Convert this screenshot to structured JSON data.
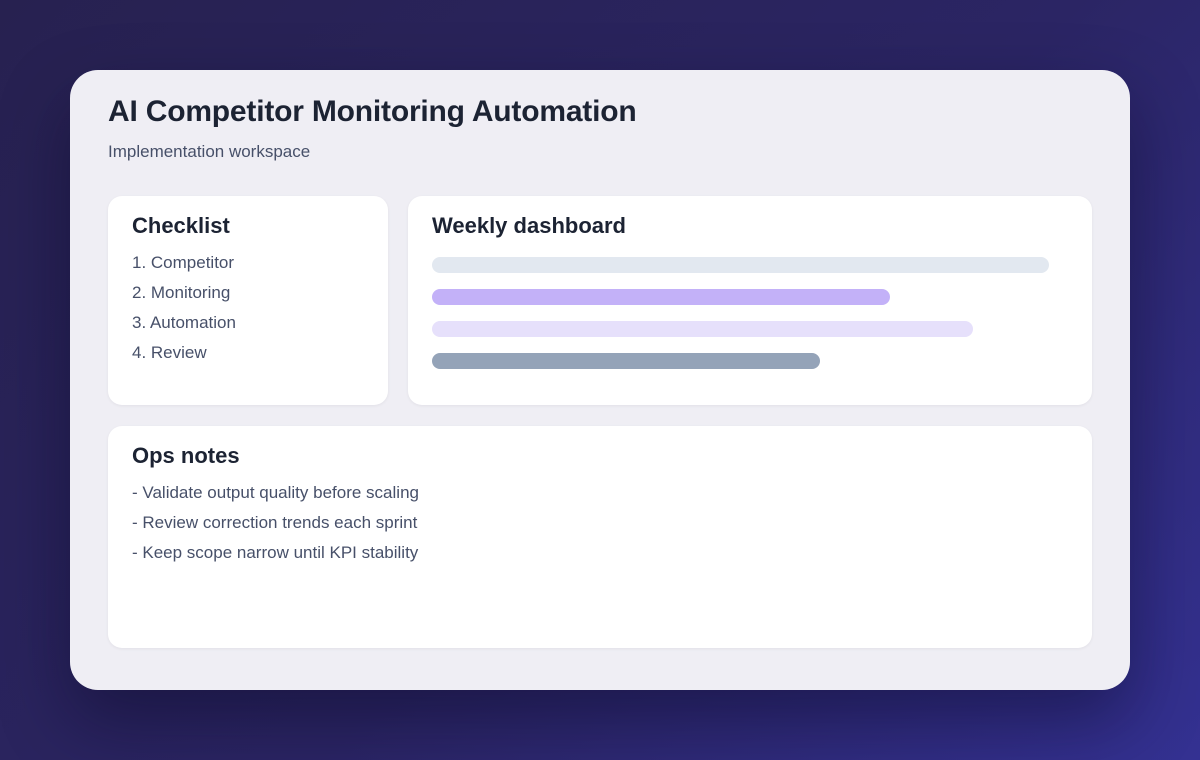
{
  "header": {
    "title": "AI Competitor Monitoring Automation",
    "subtitle": "Implementation workspace"
  },
  "checklist": {
    "title": "Checklist",
    "items": [
      "1. Competitor",
      "2. Monitoring",
      "3. Automation",
      "4. Review"
    ]
  },
  "dashboard": {
    "title": "Weekly dashboard",
    "bars": [
      {
        "name": "dashboard-bar-1",
        "width_pct": 97,
        "color": "#e2e8f0"
      },
      {
        "name": "dashboard-bar-2",
        "width_pct": 72,
        "color": "#c3b1f8"
      },
      {
        "name": "dashboard-bar-3",
        "width_pct": 85,
        "color": "#e6e0fb"
      },
      {
        "name": "dashboard-bar-4",
        "width_pct": 61,
        "color": "#94a3b8"
      }
    ]
  },
  "ops_notes": {
    "title": "Ops notes",
    "items": [
      "- Validate output quality before scaling",
      "- Review correction trends each sprint",
      "- Keep scope narrow until KPI stability"
    ]
  },
  "theme": {
    "background_gradient_start": "#272150",
    "background_gradient_end": "#343192",
    "workspace_background": "#efeef4",
    "card_background": "#ffffff",
    "heading_color": "#1c2333",
    "body_color": "#475069"
  }
}
